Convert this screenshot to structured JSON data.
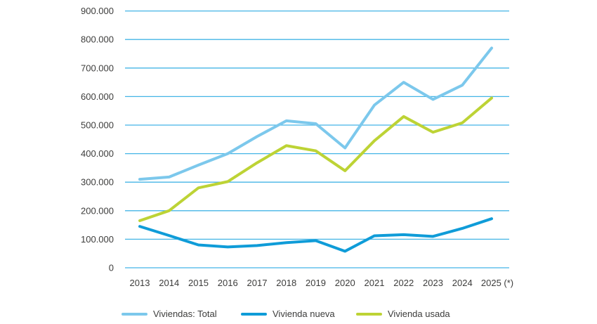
{
  "chart_data": {
    "type": "line",
    "title": "",
    "x_labels": [
      "2013",
      "2014",
      "2015",
      "2016",
      "2017",
      "2018",
      "2019",
      "2020",
      "2021",
      "2022",
      "2023",
      "2024",
      "2025 (*)"
    ],
    "y_tick_labels": [
      "0",
      "100.000",
      "200.000",
      "300.000",
      "400.000",
      "500.000",
      "600.000",
      "700.000",
      "800.000",
      "900.000"
    ],
    "ylim": [
      0,
      900000
    ],
    "ytick_step": 100000,
    "grid": true,
    "legend_position": "bottom",
    "series": [
      {
        "name": "Viviendas: Total",
        "color": "#7cc8ec",
        "values": [
          310000,
          318000,
          360000,
          400000,
          460000,
          515000,
          505000,
          420000,
          570000,
          650000,
          590000,
          640000,
          770000
        ]
      },
      {
        "name": "Vivienda nueva",
        "color": "#0f9cd8",
        "values": [
          145000,
          113000,
          80000,
          73000,
          78000,
          88000,
          95000,
          58000,
          112000,
          116000,
          110000,
          138000,
          172000
        ]
      },
      {
        "name": "Vivienda usada",
        "color": "#bdd335",
        "values": [
          165000,
          200000,
          280000,
          302000,
          368000,
          428000,
          410000,
          340000,
          445000,
          530000,
          475000,
          508000,
          595000
        ]
      }
    ]
  },
  "colors": {
    "gridline": "#44b5e6",
    "text": "#3c3c3b",
    "background": "#ffffff"
  }
}
